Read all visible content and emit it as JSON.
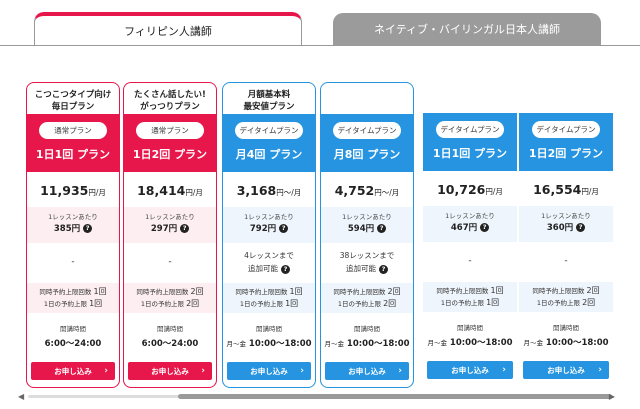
{
  "tabs": [
    {
      "label": "フィリピン人講師",
      "active": true
    },
    {
      "label": "ネイティブ・バイリンガル日本人講師",
      "active": false
    }
  ],
  "labels": {
    "per_lesson": "1レッスンあたり",
    "concurrent": "同時予約上限回数",
    "daily": "1日の予約上限",
    "hours_label": "開講時間",
    "apply": "お申し込み",
    "add_available": "追加可能",
    "dash": "-"
  },
  "plans": [
    {
      "tagline": "こつこつタイプ向け\n毎日プラン",
      "type": "通常プラン",
      "name": "1日1回 プラン",
      "price": "11,935",
      "price_unit": "円/月",
      "per_lesson": "385円",
      "add_lessons": "",
      "concurrent": "1回",
      "daily": "1回",
      "hours": "6:00〜24:00",
      "hours_prefix": "",
      "color": "#e8174b"
    },
    {
      "tagline": "たくさん話したい!\nがっつりプラン",
      "type": "通常プラン",
      "name": "1日2回 プラン",
      "price": "18,414",
      "price_unit": "円/月",
      "per_lesson": "297円",
      "add_lessons": "",
      "concurrent": "2回",
      "daily": "2回",
      "hours": "6:00〜24:00",
      "hours_prefix": "",
      "color": "#e8174b"
    },
    {
      "tagline": "月額基本料\n最安値プラン",
      "type": "デイタイムプラン",
      "name": "月4回 プラン",
      "price": "3,168",
      "price_unit": "円〜/月",
      "per_lesson": "792円",
      "add_lessons": "4レッスンまで",
      "concurrent": "1回",
      "daily": "1回",
      "hours": "10:00〜18:00",
      "hours_prefix": "月〜金",
      "color": "#2694e0"
    },
    {
      "tagline": "",
      "type": "デイタイムプラン",
      "name": "月8回 プラン",
      "price": "4,752",
      "price_unit": "円〜/月",
      "per_lesson": "594円",
      "add_lessons": "38レッスンまで",
      "concurrent": "2回",
      "daily": "2回",
      "hours": "10:00〜18:00",
      "hours_prefix": "月〜金",
      "color": "#2694e0"
    },
    {
      "tagline": "",
      "type": "デイタイムプラン",
      "name": "1日1回 プラン",
      "price": "10,726",
      "price_unit": "円/月",
      "per_lesson": "467円",
      "add_lessons": "",
      "concurrent": "1回",
      "daily": "1回",
      "hours": "10:00〜18:00",
      "hours_prefix": "月〜金",
      "color": "#2694e0"
    },
    {
      "tagline": "",
      "type": "デイタイムプラン",
      "name": "1日2回 プラン",
      "price": "16,554",
      "price_unit": "円/月",
      "per_lesson": "360円",
      "add_lessons": "",
      "concurrent": "2回",
      "daily": "2回",
      "hours": "10:00〜18:00",
      "hours_prefix": "月〜金",
      "color": "#2694e0"
    }
  ],
  "colors": {
    "pink": "#e8174b",
    "blue": "#2694e0"
  }
}
